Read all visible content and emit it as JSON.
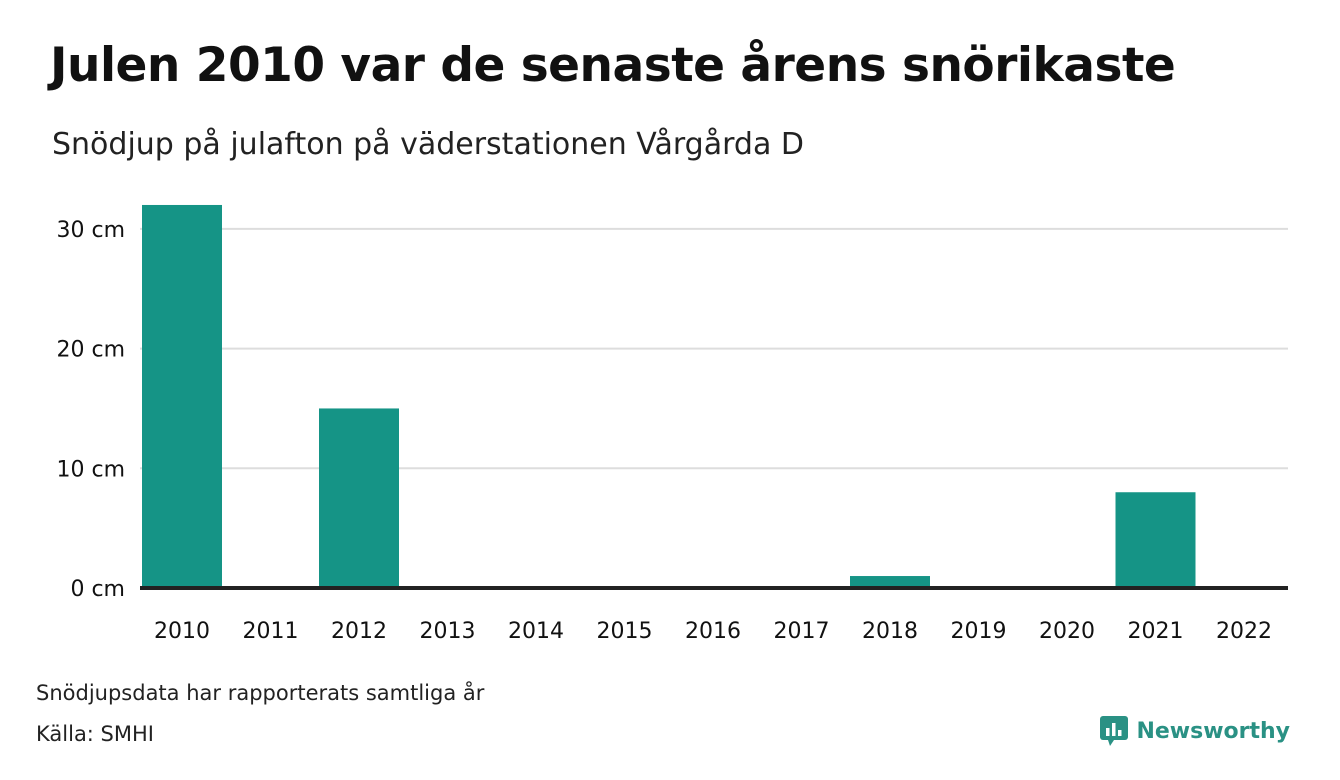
{
  "title": "Julen 2010 var de senaste årens snörikaste",
  "subtitle": "Snödjup på julafton på väderstationen Vårgårda D",
  "note": "Snödjupsdata har rapporterats samtliga år",
  "source": "Källa: SMHI",
  "brand": "Newsworthy",
  "colors": {
    "bar": "#159486",
    "grid": "#dddddd",
    "baseline": "#222222",
    "brand": "#2a9184"
  },
  "chart_data": {
    "type": "bar",
    "title": "Julen 2010 var de senaste årens snörikaste",
    "subtitle": "Snödjup på julafton på väderstationen Vårgårda D",
    "categories": [
      "2010",
      "2011",
      "2012",
      "2013",
      "2014",
      "2015",
      "2016",
      "2017",
      "2018",
      "2019",
      "2020",
      "2021",
      "2022"
    ],
    "values": [
      32,
      0,
      15,
      0,
      0,
      0,
      0,
      0,
      1,
      0,
      0,
      8,
      0
    ],
    "unit": "cm",
    "ylim": [
      0,
      33
    ],
    "yticks": [
      0,
      10,
      20,
      30
    ],
    "ytick_labels": [
      "0 cm",
      "10 cm",
      "20 cm",
      "30 cm"
    ],
    "grid": true,
    "legend": "none"
  }
}
